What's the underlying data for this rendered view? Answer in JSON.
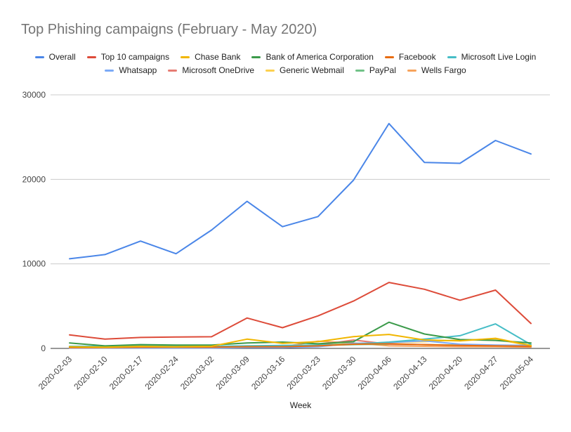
{
  "chart_data": {
    "type": "line",
    "title": "Top Phishing campaigns (February - May 2020)",
    "xlabel": "Week",
    "ylabel": "",
    "ylim": [
      0,
      30000
    ],
    "yticks": [
      "0",
      "10000",
      "20000",
      "30000"
    ],
    "grid": true,
    "legend_position": "top",
    "categories": [
      "2020-02-03",
      "2020-02-10",
      "2020-02-17",
      "2020-02-24",
      "2020-03-02",
      "2020-03-09",
      "2020-03-16",
      "2020-03-23",
      "2020-03-30",
      "2020-04-06",
      "2020-04-13",
      "2020-04-20",
      "2020-04-27",
      "2020-05-04"
    ],
    "series": [
      {
        "name": "Overall",
        "color": "#4a86e8",
        "values": [
          10600,
          11100,
          12700,
          11200,
          14000,
          17400,
          14400,
          15600,
          19900,
          26600,
          22000,
          21900,
          24600,
          23000
        ]
      },
      {
        "name": "Top 10 campaigns",
        "color": "#dd4b39",
        "values": [
          1600,
          1100,
          1300,
          1350,
          1380,
          3600,
          2450,
          3850,
          5600,
          7800,
          7000,
          5700,
          6900,
          2950
        ]
      },
      {
        "name": "Chase Bank",
        "color": "#f1b600",
        "values": [
          200,
          150,
          250,
          200,
          250,
          1100,
          600,
          800,
          1400,
          1650,
          1000,
          900,
          1200,
          350
        ]
      },
      {
        "name": "Bank of America Corporation",
        "color": "#3b9a4a",
        "values": [
          650,
          300,
          450,
          400,
          400,
          650,
          750,
          550,
          800,
          3100,
          1700,
          1050,
          950,
          650
        ]
      },
      {
        "name": "Facebook",
        "color": "#e86c10",
        "values": [
          100,
          100,
          150,
          150,
          150,
          200,
          200,
          300,
          500,
          550,
          450,
          350,
          300,
          250
        ]
      },
      {
        "name": "Microsoft Live Login",
        "color": "#46bdc6",
        "values": [
          250,
          250,
          300,
          250,
          250,
          300,
          350,
          400,
          500,
          750,
          1100,
          1500,
          2900,
          450
        ]
      },
      {
        "name": "Whatsapp",
        "color": "#7baaf7",
        "values": [
          50,
          50,
          50,
          50,
          50,
          100,
          100,
          200,
          600,
          700,
          900,
          500,
          400,
          350
        ]
      },
      {
        "name": "Microsoft OneDrive",
        "color": "#e67c73",
        "values": [
          100,
          100,
          150,
          150,
          150,
          200,
          250,
          400,
          1000,
          500,
          450,
          350,
          300,
          250
        ]
      },
      {
        "name": "Generic Webmail",
        "color": "#fcd04f",
        "values": [
          150,
          150,
          200,
          200,
          200,
          300,
          300,
          400,
          600,
          700,
          800,
          1000,
          1100,
          300
        ]
      },
      {
        "name": "PayPal",
        "color": "#71c287",
        "values": [
          100,
          100,
          150,
          150,
          150,
          250,
          250,
          350,
          450,
          500,
          450,
          400,
          350,
          300
        ]
      },
      {
        "name": "Wells Fargo",
        "color": "#f7a35c",
        "values": [
          50,
          50,
          100,
          100,
          100,
          150,
          200,
          850,
          650,
          300,
          250,
          200,
          200,
          150
        ]
      }
    ]
  }
}
